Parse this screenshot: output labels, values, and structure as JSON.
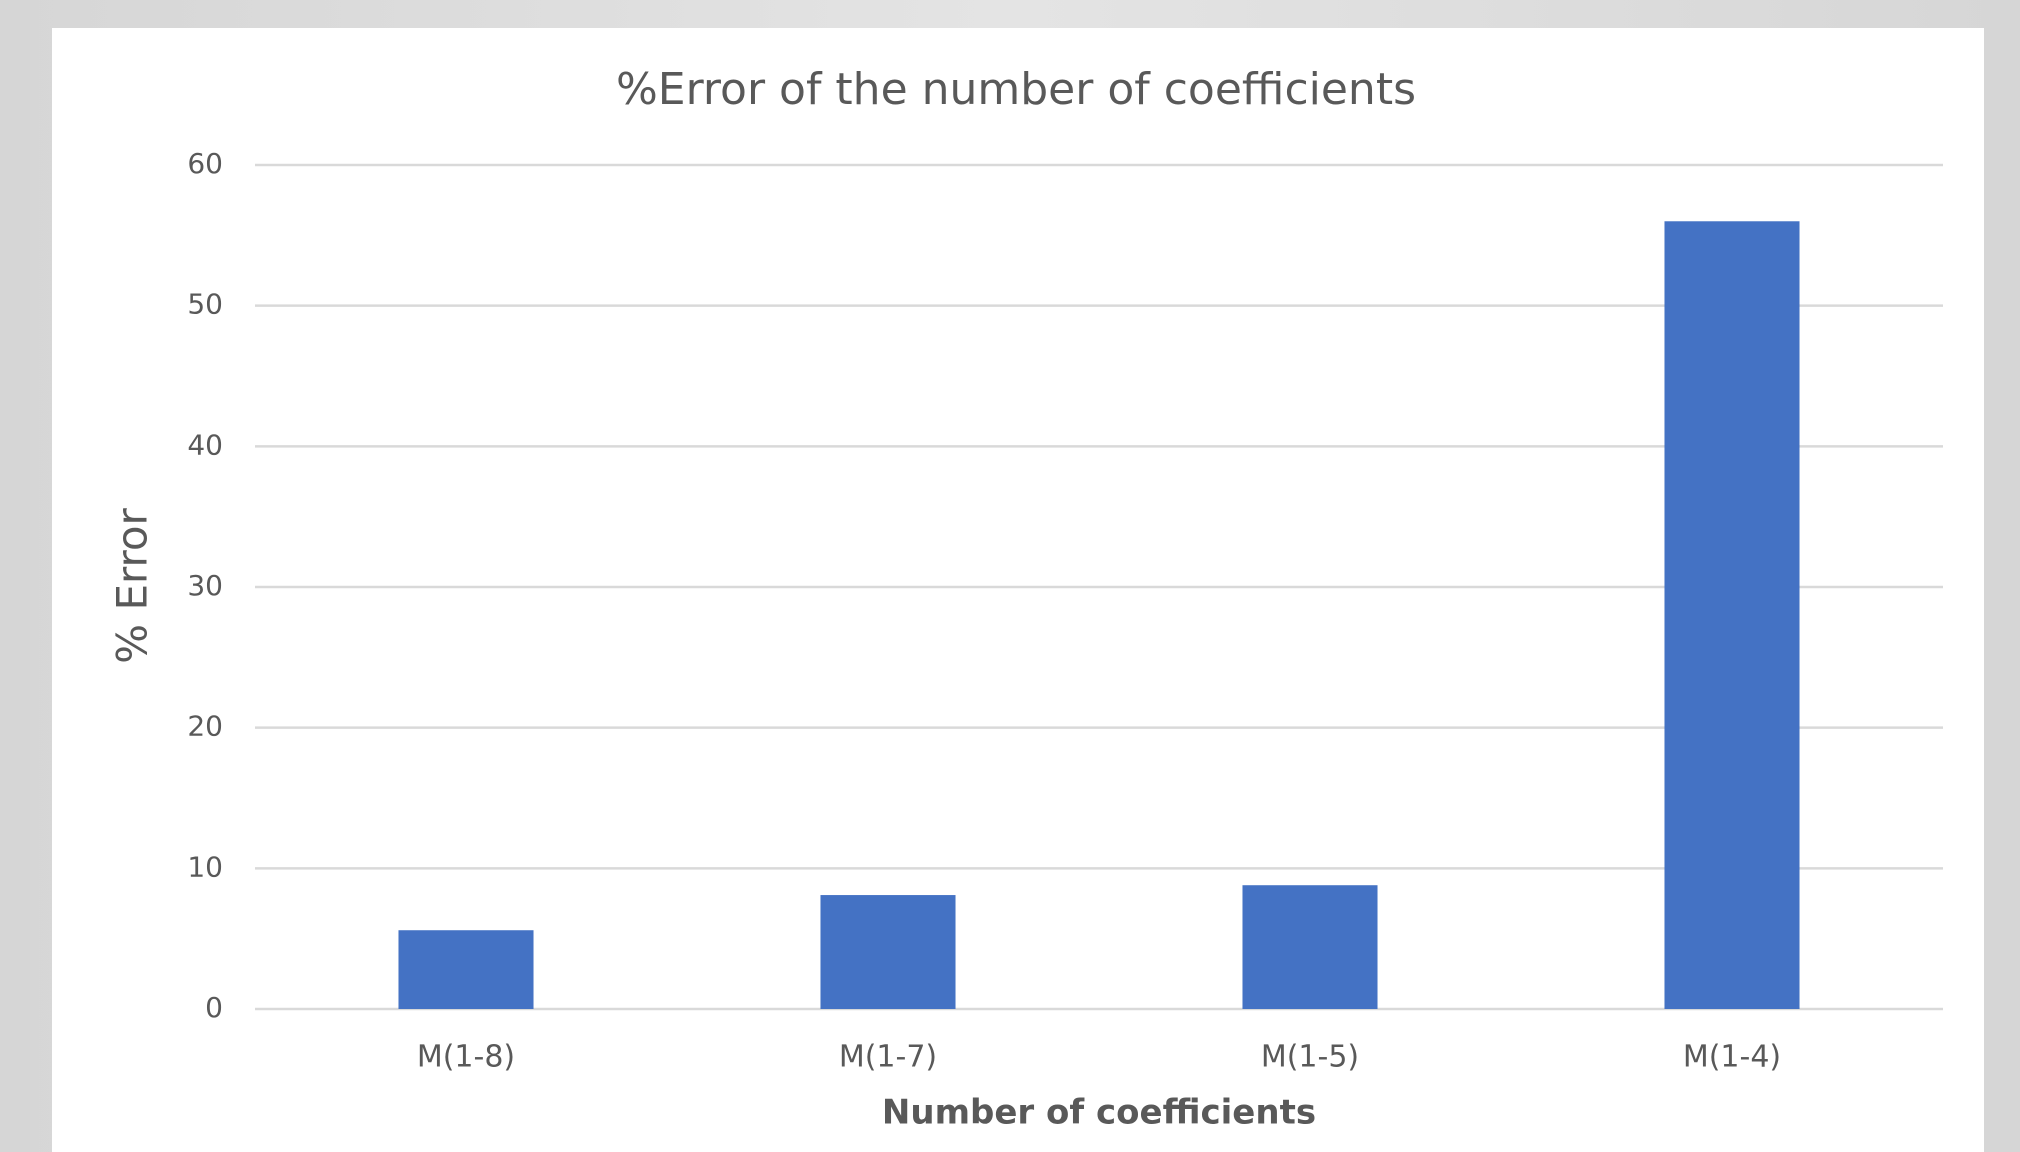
{
  "chart_data": {
    "type": "bar",
    "title": "%Error of the number of coefficients",
    "x_label": "Number of coefficients",
    "y_label": "% Error",
    "categories": [
      "M(1-8)",
      "M(1-7)",
      "M(1-5)",
      "M(1-4)"
    ],
    "values": [
      5.6,
      8.1,
      8.8,
      56
    ],
    "color": "#4472c4",
    "ylim": [
      0,
      60
    ],
    "yticks": [
      0,
      10,
      20,
      30,
      40,
      50,
      60
    ],
    "grid": true
  }
}
